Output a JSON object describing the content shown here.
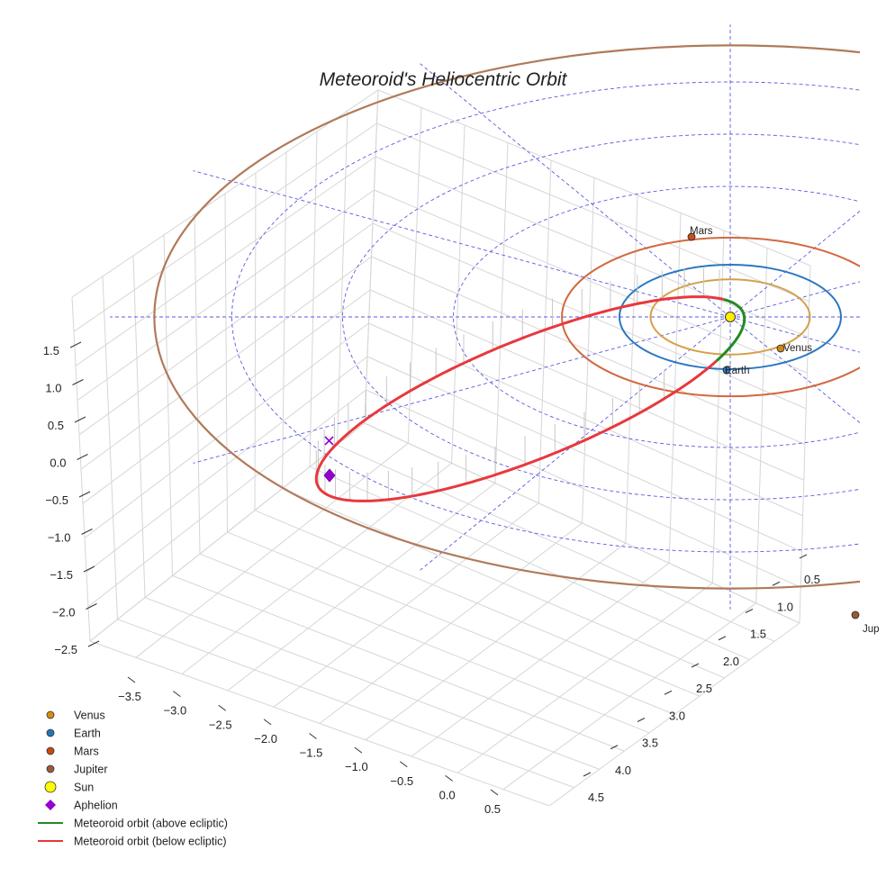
{
  "chart_data": {
    "type": "scatter",
    "title": "Meteoroid's Heliocentric Orbit",
    "xlabel": "",
    "ylabel": "",
    "zlabel": "",
    "x_ticks": [
      "0.5",
      "0.0",
      "−0.5",
      "−1.0",
      "−1.5",
      "−2.0",
      "−2.5",
      "−3.0",
      "−3.5"
    ],
    "y_ticks": [
      "0.5",
      "1.0",
      "1.5",
      "2.0",
      "2.5",
      "3.0",
      "3.5",
      "4.0",
      "4.5"
    ],
    "z_ticks": [
      "1.5",
      "1.0",
      "0.5",
      "0.0",
      "−0.5",
      "−1.0",
      "−1.5",
      "−2.0",
      "−2.5"
    ],
    "planets": [
      {
        "name": "Venus",
        "label": "Venus",
        "orbit_au": 0.72,
        "color": "#c98a1a",
        "orbit_color": "#d4a04a"
      },
      {
        "name": "Earth",
        "label": "Earth",
        "orbit_au": 1.0,
        "color": "#2b77c0",
        "orbit_color": "#2b77c0"
      },
      {
        "name": "Mars",
        "label": "Mars",
        "orbit_au": 1.52,
        "color": "#c4501f",
        "orbit_color": "#d2693f"
      },
      {
        "name": "Jupiter",
        "label": "Jup",
        "orbit_au": 5.2,
        "color": "#9b5a35",
        "orbit_color": "#b07a5a"
      }
    ],
    "sun": {
      "name": "Sun",
      "color": "#ffee00"
    },
    "aphelion": {
      "name": "Aphelion",
      "color": "#9400d3"
    },
    "meteoroid": {
      "above_label": "Meteoroid orbit (above ecliptic)",
      "below_label": "Meteoroid orbit (below ecliptic)",
      "above_color": "#228b22",
      "below_color": "#e8383d"
    },
    "legend": [
      {
        "label": "Venus",
        "marker": "circle",
        "color": "#d98c10"
      },
      {
        "label": "Earth",
        "marker": "circle",
        "color": "#2176b8"
      },
      {
        "label": "Mars",
        "marker": "circle",
        "color": "#c84a10"
      },
      {
        "label": "Jupiter",
        "marker": "circle",
        "color": "#9c5a3c"
      },
      {
        "label": "Sun",
        "marker": "circle-large",
        "color": "#ffff00"
      },
      {
        "label": "Aphelion",
        "marker": "diamond",
        "color": "#9400d3"
      },
      {
        "label": "Meteoroid orbit (above ecliptic)",
        "marker": "line",
        "color": "#228b22"
      },
      {
        "label": "Meteoroid orbit (below ecliptic)",
        "marker": "line",
        "color": "#e8383d"
      }
    ],
    "legend_position": "bottom-left",
    "grid": true
  }
}
